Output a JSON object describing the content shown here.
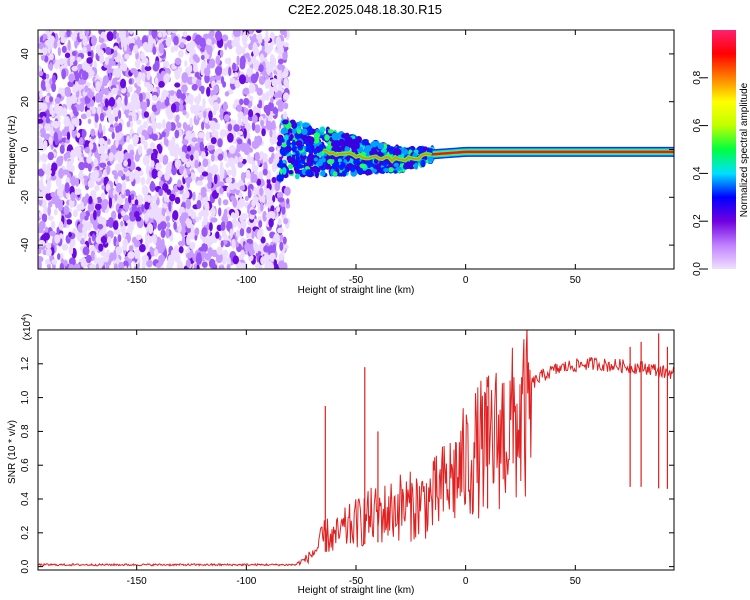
{
  "title": "C2E2.2025.048.18.30.R15",
  "chart_data": [
    {
      "type": "heatmap",
      "xlabel": "Height of straight line (km)",
      "ylabel": "Frequency (Hz)",
      "xlim": [
        -195,
        95
      ],
      "ylim": [
        -50,
        50
      ],
      "xticks": [
        -150,
        -100,
        -50,
        0,
        50
      ],
      "xtick_labels": [
        "-150",
        "-100",
        "-50",
        "0",
        "50"
      ],
      "yticks": [
        -40,
        -20,
        0,
        20,
        40
      ],
      "ytick_labels": [
        "-40",
        "-20",
        "0",
        "20",
        "40"
      ],
      "noise_region_x": [
        -195,
        -85
      ],
      "transition_region_x": [
        -85,
        -15
      ],
      "signal_line": {
        "x": [
          -85,
          -75,
          -65,
          -55,
          -45,
          -35,
          -25,
          -15,
          0,
          25,
          50,
          75,
          95
        ],
        "frequency": [
          0,
          0,
          -1,
          -2,
          -3,
          -4,
          -4,
          -2,
          -1,
          -1,
          -1,
          -1,
          -1
        ]
      },
      "colorbar": {
        "label": "Normalized spectral amplitude",
        "range": [
          0,
          1
        ],
        "ticks": [
          0.0,
          0.2,
          0.4,
          0.6,
          0.8
        ],
        "tick_labels": [
          "0.0",
          "0.2",
          "0.4",
          "0.6",
          "0.8"
        ],
        "colors": [
          "#f0e0ff",
          "#c080ff",
          "#7000e0",
          "#0000ff",
          "#00e0ff",
          "#00ff40",
          "#c0ff00",
          "#ffff00",
          "#ff8000",
          "#ff0000",
          "#ff2070"
        ]
      },
      "grid": false
    },
    {
      "type": "line",
      "xlabel": "Height of straight line (km)",
      "ylabel": "SNR (10 * v/v)",
      "multiplier": "(x10",
      "multiplier_exp": "4",
      "multiplier_close": ")",
      "xlim": [
        -195,
        95
      ],
      "ylim": [
        -0.02,
        1.4
      ],
      "xticks": [
        -150,
        -100,
        -50,
        0,
        50
      ],
      "xtick_labels": [
        "-150",
        "-100",
        "-50",
        "0",
        "50"
      ],
      "yticks": [
        0.0,
        0.2,
        0.4,
        0.6,
        0.8,
        1.0,
        1.2
      ],
      "ytick_labels": [
        "0.0",
        "0.2",
        "0.4",
        "0.6",
        "0.8",
        "1.0",
        "1.2"
      ],
      "series": [
        {
          "color": "#e02020",
          "x": [
            -195,
            -150,
            -100,
            -85,
            -78,
            -72,
            -68,
            -64,
            -60,
            -55,
            -50,
            -45,
            -40,
            -35,
            -30,
            -25,
            -20,
            -15,
            -10,
            -5,
            0,
            5,
            10,
            15,
            20,
            25,
            30,
            35,
            40,
            45,
            50,
            55,
            60,
            65,
            70,
            75,
            80,
            85,
            90,
            95
          ],
          "values": [
            0.0,
            0.0,
            0.0,
            0.0,
            0.01,
            0.06,
            0.12,
            0.22,
            0.2,
            0.26,
            0.3,
            0.34,
            0.36,
            0.38,
            0.42,
            0.42,
            0.44,
            0.47,
            0.55,
            0.63,
            0.72,
            0.8,
            0.86,
            0.91,
            0.96,
            1.01,
            1.08,
            1.13,
            1.16,
            1.18,
            1.19,
            1.2,
            1.2,
            1.19,
            1.19,
            1.18,
            1.18,
            1.17,
            1.15,
            1.15
          ],
          "peak_x": [
            -64,
            -46,
            -40,
            10,
            75,
            80,
            88,
            92
          ],
          "peak_values": [
            0.95,
            1.18,
            0.8,
            0.95,
            1.3,
            1.33,
            1.38,
            1.3
          ]
        }
      ],
      "grid": false
    }
  ]
}
